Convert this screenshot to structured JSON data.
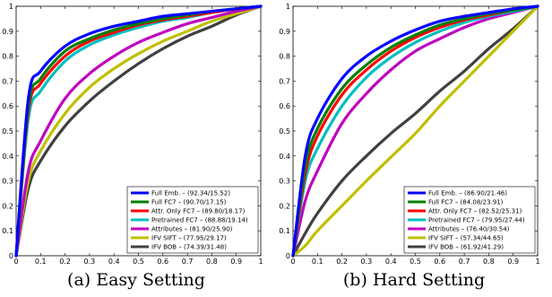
{
  "chart_data": [
    {
      "type": "line",
      "caption": "(a) Easy Setting",
      "xlim": [
        0,
        1
      ],
      "ylim": [
        0,
        1
      ],
      "xticks": [
        "0",
        "0.1",
        "0.2",
        "0.3",
        "0.4",
        "0.5",
        "0.6",
        "0.7",
        "0.8",
        "0.9",
        "1"
      ],
      "yticks": [
        "0",
        "0.1",
        "0.2",
        "0.3",
        "0.4",
        "0.5",
        "0.6",
        "0.7",
        "0.8",
        "0.9",
        "1"
      ],
      "grid": false,
      "legend_position": "bottom-right",
      "x": [
        0,
        0.05,
        0.1,
        0.2,
        0.3,
        0.4,
        0.5,
        0.6,
        0.7,
        0.8,
        0.9,
        1
      ],
      "series": [
        {
          "name": "Full Emb. – (92.34/15.52)",
          "color": "#0000ff",
          "values": [
            0,
            0.63,
            0.74,
            0.84,
            0.89,
            0.92,
            0.94,
            0.96,
            0.97,
            0.98,
            0.99,
            1
          ]
        },
        {
          "name": "Full FC7 – (90.70/17.15)",
          "color": "#008000",
          "values": [
            0,
            0.6,
            0.71,
            0.82,
            0.87,
            0.905,
            0.93,
            0.95,
            0.965,
            0.98,
            0.99,
            1
          ]
        },
        {
          "name": "Attr. Only FC7 – (89.80/18.17)",
          "color": "#ff0000",
          "values": [
            0,
            0.58,
            0.69,
            0.8,
            0.86,
            0.895,
            0.925,
            0.945,
            0.96,
            0.975,
            0.99,
            1
          ]
        },
        {
          "name": "Pretrained FC7 – (88.88/19.14)",
          "color": "#00bfbf",
          "values": [
            0,
            0.55,
            0.66,
            0.78,
            0.845,
            0.885,
            0.915,
            0.94,
            0.955,
            0.975,
            0.99,
            1
          ]
        },
        {
          "name": "Attributes – (81.90/25.90)",
          "color": "#bf00bf",
          "values": [
            0,
            0.34,
            0.46,
            0.63,
            0.73,
            0.8,
            0.855,
            0.895,
            0.93,
            0.955,
            0.98,
            1
          ]
        },
        {
          "name": "IFV SIFT – (77.95/29.17)",
          "color": "#bfbf00",
          "values": [
            0,
            0.3,
            0.42,
            0.57,
            0.675,
            0.75,
            0.81,
            0.86,
            0.9,
            0.94,
            0.97,
            1
          ]
        },
        {
          "name": "IFV BOB – (74.39/31.48)",
          "color": "#404040",
          "values": [
            0,
            0.27,
            0.38,
            0.52,
            0.62,
            0.7,
            0.77,
            0.83,
            0.88,
            0.92,
            0.965,
            1
          ]
        }
      ]
    },
    {
      "type": "line",
      "caption": "(b) Hard Setting",
      "xlim": [
        0,
        1
      ],
      "ylim": [
        0,
        1
      ],
      "xticks": [
        "0",
        "0.1",
        "0.2",
        "0.3",
        "0.4",
        "0.5",
        "0.6",
        "0.7",
        "0.8",
        "0.9",
        "1"
      ],
      "yticks": [
        "0",
        "0.1",
        "0.2",
        "0.3",
        "0.4",
        "0.5",
        "0.6",
        "0.7",
        "0.8",
        "0.9",
        "1"
      ],
      "grid": false,
      "legend_position": "bottom-right",
      "x": [
        0,
        0.05,
        0.1,
        0.2,
        0.3,
        0.4,
        0.5,
        0.6,
        0.7,
        0.8,
        0.9,
        1
      ],
      "series": [
        {
          "name": "Full Emb. – (86.90/21.46)",
          "color": "#0000ff",
          "values": [
            0,
            0.4,
            0.55,
            0.71,
            0.8,
            0.86,
            0.905,
            0.94,
            0.96,
            0.975,
            0.99,
            1
          ]
        },
        {
          "name": "Full FC7 – (84.08/23.91)",
          "color": "#008000",
          "values": [
            0,
            0.36,
            0.51,
            0.67,
            0.765,
            0.835,
            0.885,
            0.925,
            0.95,
            0.97,
            0.985,
            1
          ]
        },
        {
          "name": "Attr. Only FC7 – (82.52/25.31)",
          "color": "#ff0000",
          "values": [
            0,
            0.33,
            0.48,
            0.645,
            0.745,
            0.82,
            0.875,
            0.915,
            0.945,
            0.965,
            0.985,
            1
          ]
        },
        {
          "name": "Pretrained FC7 – (79.95/27.44)",
          "color": "#00bfbf",
          "values": [
            0,
            0.3,
            0.43,
            0.6,
            0.715,
            0.795,
            0.855,
            0.9,
            0.935,
            0.96,
            0.98,
            1
          ]
        },
        {
          "name": "Attributes – (76.40/30.54)",
          "color": "#bf00bf",
          "values": [
            0,
            0.22,
            0.34,
            0.53,
            0.65,
            0.745,
            0.82,
            0.87,
            0.915,
            0.95,
            0.975,
            1
          ]
        },
        {
          "name": "IFV SIFT – (57.34/44.65)",
          "color": "#bfbf00",
          "values": [
            0,
            0.04,
            0.1,
            0.2,
            0.3,
            0.395,
            0.49,
            0.6,
            0.7,
            0.8,
            0.9,
            1
          ]
        },
        {
          "name": "IFV BOB – (61.92/41.29)",
          "color": "#404040",
          "values": [
            0,
            0.09,
            0.17,
            0.3,
            0.4,
            0.49,
            0.57,
            0.66,
            0.74,
            0.83,
            0.91,
            1
          ]
        }
      ]
    }
  ]
}
